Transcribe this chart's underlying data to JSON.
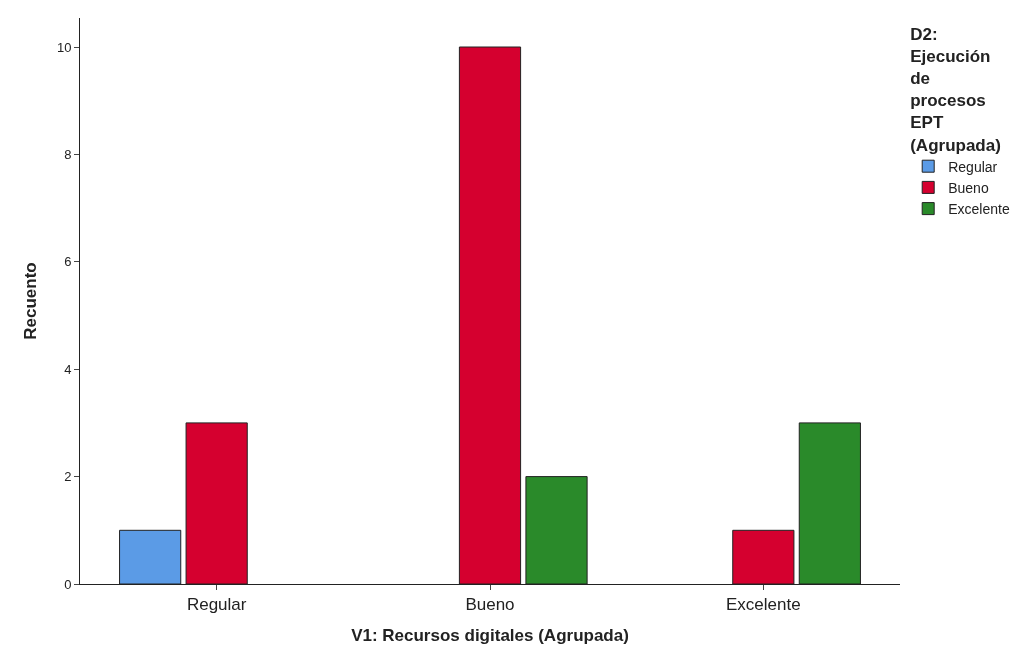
{
  "chart_data": {
    "type": "bar",
    "xlabel": "V1: Recursos digitales (Agrupada)",
    "ylabel": "Recuento",
    "legend_title": "D2: Ejecución de procesos EPT (Agrupada)",
    "categories": [
      "Regular",
      "Bueno",
      "Excelente"
    ],
    "series": [
      {
        "name": "Regular",
        "color": "#5b9be6",
        "values": [
          1,
          null,
          null
        ]
      },
      {
        "name": "Bueno",
        "color": "#d5002f",
        "values": [
          3,
          10,
          1
        ]
      },
      {
        "name": "Excelente",
        "color": "#2a8a2a",
        "values": [
          null,
          2,
          3
        ]
      }
    ],
    "ylim": [
      0,
      10.54
    ],
    "yticks": [
      0,
      2,
      4,
      6,
      8,
      10
    ],
    "legend": "top right"
  }
}
